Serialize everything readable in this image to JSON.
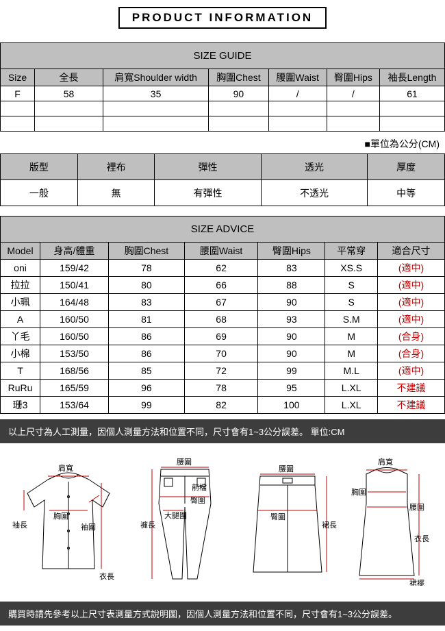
{
  "title": "PRODUCT INFORMATION",
  "sizeGuide": {
    "heading": "SIZE GUIDE",
    "headers": [
      "Size",
      "全長",
      "肩寬Shoulder width",
      "胸圍Chest",
      "腰圍Waist",
      "臀圍Hips",
      "袖長Length"
    ],
    "row1": {
      "c0": "F",
      "c1": "58",
      "c2": "35",
      "c3": "90",
      "c4": "/",
      "c5": "/",
      "c6": "61"
    },
    "unitNote": "■單位為公分(CM)"
  },
  "fabric": {
    "headers": [
      "版型",
      "裡布",
      "彈性",
      "透光",
      "厚度"
    ],
    "values": [
      "一般",
      "無",
      "有彈性",
      "不透光",
      "中等"
    ]
  },
  "advice": {
    "heading": "SIZE ADVICE",
    "headers": [
      "Model",
      "身高/體重",
      "胸圍Chest",
      "腰圍Waist",
      "臀圍Hips",
      "平常穿",
      "適合尺寸"
    ],
    "rows": [
      {
        "c0": "oni",
        "c1": "159/42",
        "c2": "78",
        "c3": "62",
        "c4": "83",
        "c5": "XS.S",
        "c6": "(適中)"
      },
      {
        "c0": "拉拉",
        "c1": "150/41",
        "c2": "80",
        "c3": "66",
        "c4": "88",
        "c5": "S",
        "c6": "(適中)"
      },
      {
        "c0": "小珮",
        "c1": "164/48",
        "c2": "83",
        "c3": "67",
        "c4": "90",
        "c5": "S",
        "c6": "(適中)"
      },
      {
        "c0": "A",
        "c1": "160/50",
        "c2": "81",
        "c3": "68",
        "c4": "93",
        "c5": "S.M",
        "c6": "(適中)"
      },
      {
        "c0": "丫毛",
        "c1": "160/50",
        "c2": "86",
        "c3": "69",
        "c4": "90",
        "c5": "M",
        "c6": "(合身)"
      },
      {
        "c0": "小棉",
        "c1": "153/50",
        "c2": "86",
        "c3": "70",
        "c4": "90",
        "c5": "M",
        "c6": "(合身)"
      },
      {
        "c0": "T",
        "c1": "168/56",
        "c2": "85",
        "c3": "72",
        "c4": "99",
        "c5": "M.L",
        "c6": "(適中)"
      },
      {
        "c0": "RuRu",
        "c1": "165/59",
        "c2": "96",
        "c3": "78",
        "c4": "95",
        "c5": "L.XL",
        "c6": "不建議"
      },
      {
        "c0": "珊3",
        "c1": "153/64",
        "c2": "99",
        "c3": "82",
        "c4": "100",
        "c5": "L.XL",
        "c6": "不建議"
      }
    ]
  },
  "note1": "以上尺寸為人工測量，因個人測量方法和位置不同，尺寸會有1~3公分誤差。 單位:CM",
  "note2": "購買時請先參考以上尺寸表測量方式說明圖，因個人測量方法和位置不同，尺寸會有1~3公分誤差。",
  "diagLabels": {
    "shoulder": "肩寬",
    "chest": "胸圍",
    "sleeve": "袖長",
    "cuff": "袖圍",
    "length": "衣長",
    "waist": "腰圍",
    "front": "前檔",
    "hip": "臀圍",
    "thigh": "大腿圍",
    "pantLen": "褲長",
    "skirtHip": "臀圍",
    "skirtLen": "裙長",
    "dressWaist": "腰圍",
    "hem": "裙襬"
  }
}
